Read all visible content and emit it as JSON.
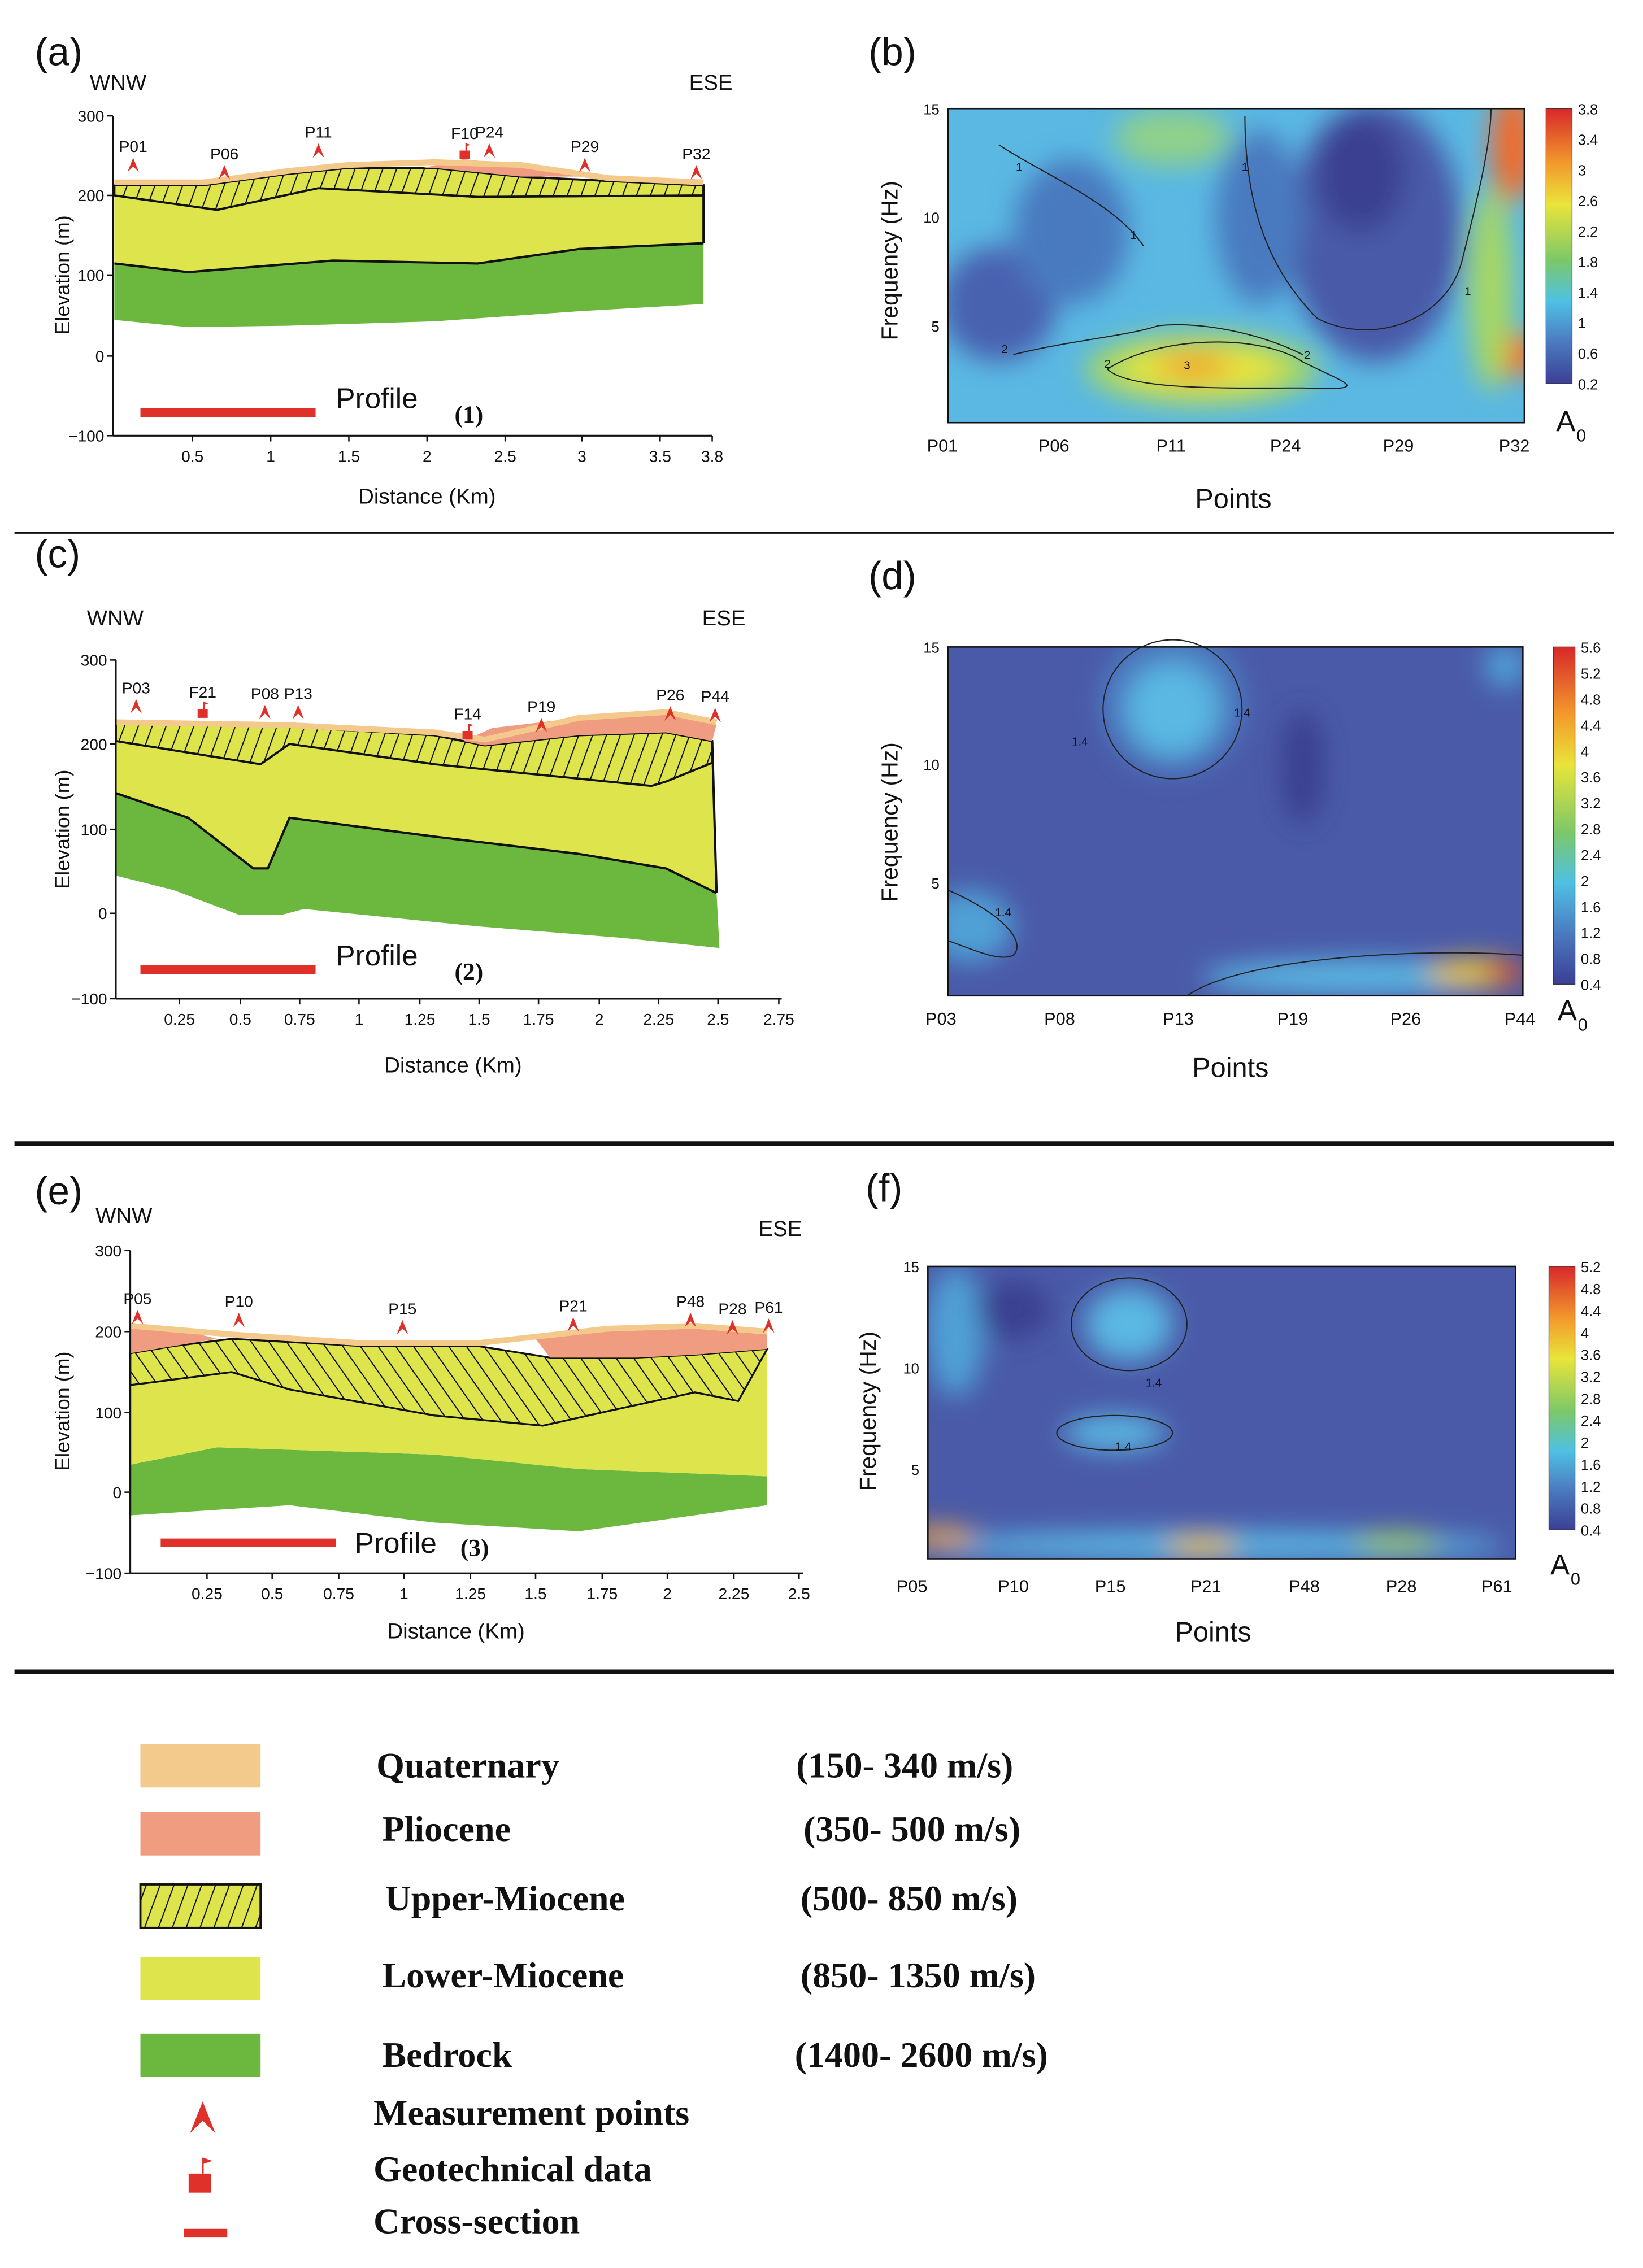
{
  "panels": {
    "a": {
      "label": "(a)",
      "left": "WNW",
      "right": "ESE",
      "ylabel": "Elevation (m)",
      "xlabel": "Distance (Km)",
      "yticks": [
        "300",
        "200",
        "100",
        "0",
        "−100"
      ],
      "xticks": [
        "0.5",
        "1",
        "1.5",
        "2",
        "2.5",
        "3",
        "3.5",
        "3.8"
      ],
      "points": [
        "P01",
        "P06",
        "P11",
        "F10",
        "P24",
        "P29",
        "P32"
      ],
      "profile": "Profile",
      "profile_num": "(1)"
    },
    "b": {
      "label": "(b)",
      "ylabel": "Frequency (Hz)",
      "xlabel": "Points",
      "yticks": [
        "15",
        "10",
        "5"
      ],
      "xticks": [
        "P01",
        "P06",
        "P11",
        "P24",
        "P29",
        "P32"
      ],
      "colorbar": [
        "3.8",
        "3.4",
        "3",
        "2.6",
        "2.2",
        "1.8",
        "1.4",
        "1",
        "0.6",
        "0.2"
      ],
      "contour_labels": [
        "1",
        "1",
        "1",
        "1",
        "2",
        "2",
        "3",
        "2"
      ],
      "unit": "A",
      "unit_sub": "0"
    },
    "c": {
      "label": "(c)",
      "left": "WNW",
      "right": "ESE",
      "ylabel": "Elevation (m)",
      "xlabel": "Distance (Km)",
      "yticks": [
        "300",
        "200",
        "100",
        "0",
        "−100"
      ],
      "xticks": [
        "0.25",
        "0.5",
        "0.75",
        "1",
        "1.25",
        "1.5",
        "1.75",
        "2",
        "2.25",
        "2.5",
        "2.75"
      ],
      "points": [
        "P03",
        "F21",
        "P08",
        "P13",
        "F14",
        "P19",
        "P26",
        "P44"
      ],
      "profile": "Profile",
      "profile_num": "(2)"
    },
    "d": {
      "label": "(d)",
      "ylabel": "Frequency (Hz)",
      "xlabel": "Points",
      "yticks": [
        "15",
        "10",
        "5"
      ],
      "xticks": [
        "P03",
        "P08",
        "P13",
        "P19",
        "P26",
        "P44"
      ],
      "colorbar": [
        "5.6",
        "5.2",
        "4.8",
        "4.4",
        "4",
        "3.6",
        "3.2",
        "2.8",
        "2.4",
        "2",
        "1.6",
        "1.2",
        "0.8",
        "0.4"
      ],
      "contour_labels": [
        "1.4",
        "1.4",
        "1.4"
      ],
      "unit": "A",
      "unit_sub": "0"
    },
    "e": {
      "label": "(e)",
      "left": "WNW",
      "right": "ESE",
      "ylabel": "Elevation (m)",
      "xlabel": "Distance (Km)",
      "yticks": [
        "300",
        "200",
        "100",
        "0",
        "−100"
      ],
      "xticks": [
        "0.25",
        "0.5",
        "0.75",
        "1",
        "1.25",
        "1.5",
        "1.75",
        "2",
        "2.25",
        "2.5"
      ],
      "points": [
        "P05",
        "P10",
        "P15",
        "P21",
        "P48",
        "P28",
        "P61"
      ],
      "profile": "Profile",
      "profile_num": "(3)"
    },
    "f": {
      "label": "(f)",
      "ylabel": "Frequency (Hz)",
      "xlabel": "Points",
      "yticks": [
        "15",
        "10",
        "5"
      ],
      "xticks": [
        "P05",
        "P10",
        "P15",
        "P21",
        "P48",
        "P28",
        "P61"
      ],
      "colorbar": [
        "5.2",
        "4.8",
        "4.4",
        "4",
        "3.6",
        "3.2",
        "2.8",
        "2.4",
        "2",
        "1.6",
        "1.2",
        "0.8",
        "0.4"
      ],
      "contour_labels": [
        "1.4",
        "1.4"
      ],
      "unit": "A",
      "unit_sub": "0"
    }
  },
  "legend": {
    "units": [
      {
        "name": "Quaternary",
        "velocity": "(150- 340 m/s)",
        "color": "#f4c98c"
      },
      {
        "name": "Pliocene",
        "velocity": "(350- 500 m/s)",
        "color": "#f09c80"
      },
      {
        "name": "Upper-Miocene",
        "velocity": "(500- 850 m/s)",
        "color": "#dde44c"
      },
      {
        "name": "Lower-Miocene",
        "velocity": "(850- 1350 m/s)",
        "color": "#dde44c"
      },
      {
        "name": "Bedrock",
        "velocity": "(1400- 2600 m/s)",
        "color": "#6cb83f"
      }
    ],
    "symbols": [
      "Measurement points",
      "Geotechnical data",
      "Cross-section"
    ]
  },
  "colors": {
    "red": "#e0302a",
    "quaternary": "#f4c98c",
    "pliocene": "#f09c80",
    "lower": "#dde44c",
    "bedrock": "#6cb83f"
  }
}
